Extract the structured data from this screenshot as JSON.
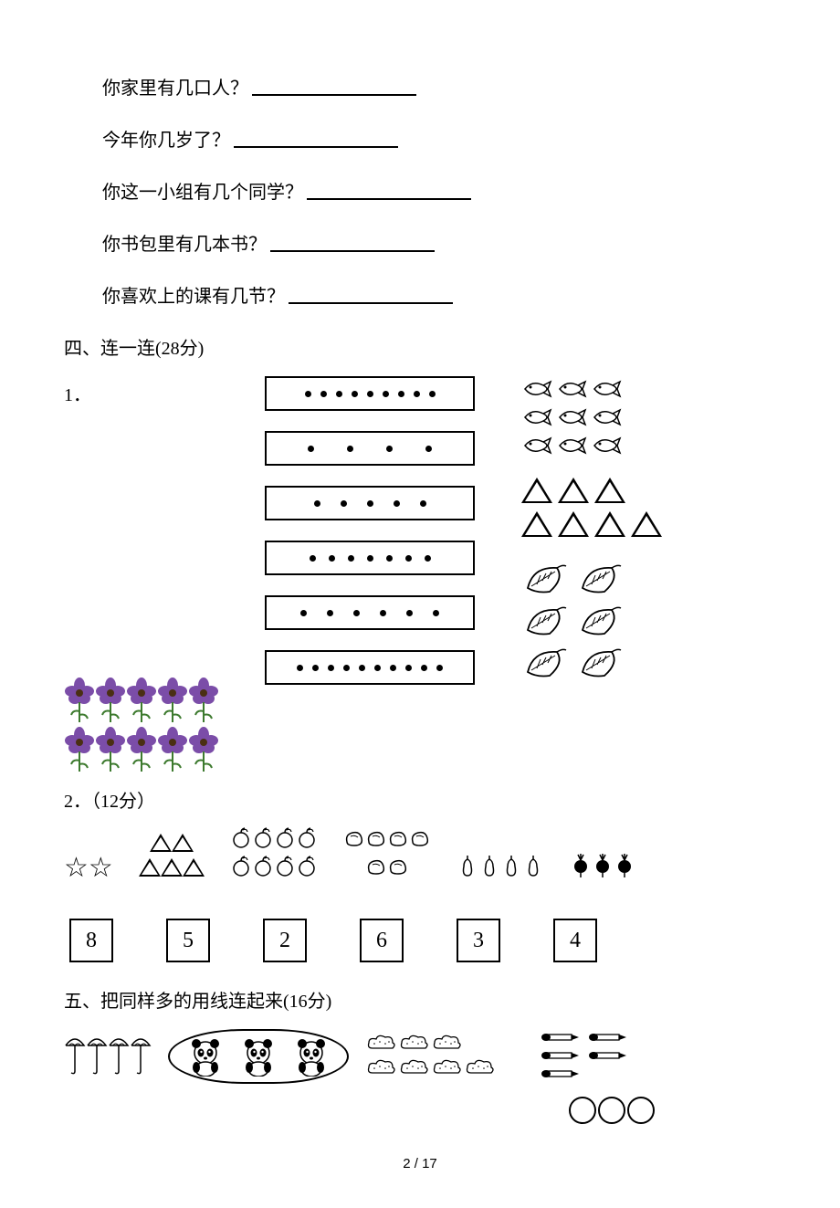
{
  "fill_questions": [
    "你家里有几口人？",
    "今年你几岁了？",
    "你这一小组有几个同学？",
    "你书包里有几本书？",
    "你喜欢上的课有几节？"
  ],
  "section4": {
    "heading": "四、连一连(28分)",
    "q1_label": "1．",
    "dot_rows": [
      9,
      4,
      5,
      7,
      6,
      10
    ],
    "right_groups": {
      "fish_count": 9,
      "triangle_counts": [
        3,
        4
      ],
      "leaf_count": 6
    },
    "flowers": {
      "rows": 2,
      "cols": 5,
      "petal_color": "#7b4da8",
      "center_color": "#4a2f13",
      "stem_color": "#3d7a2e"
    },
    "q2_label": "2．（12分）",
    "q2_groups": [
      {
        "type": "star",
        "count": 2
      },
      {
        "type": "triangle",
        "count": 5
      },
      {
        "type": "apple",
        "count": 8
      },
      {
        "type": "squiggle",
        "count": 6
      },
      {
        "type": "pear",
        "count": 4
      },
      {
        "type": "radish",
        "count": 3
      }
    ],
    "numbers": [
      "8",
      "5",
      "2",
      "6",
      "3",
      "4"
    ]
  },
  "section5": {
    "heading": "五、把同样多的用线连起来(16分)",
    "umbrellas": 4,
    "pandas": 3,
    "clouds": 7,
    "pencils": 5,
    "circles": 3
  },
  "page_number": "2 / 17"
}
